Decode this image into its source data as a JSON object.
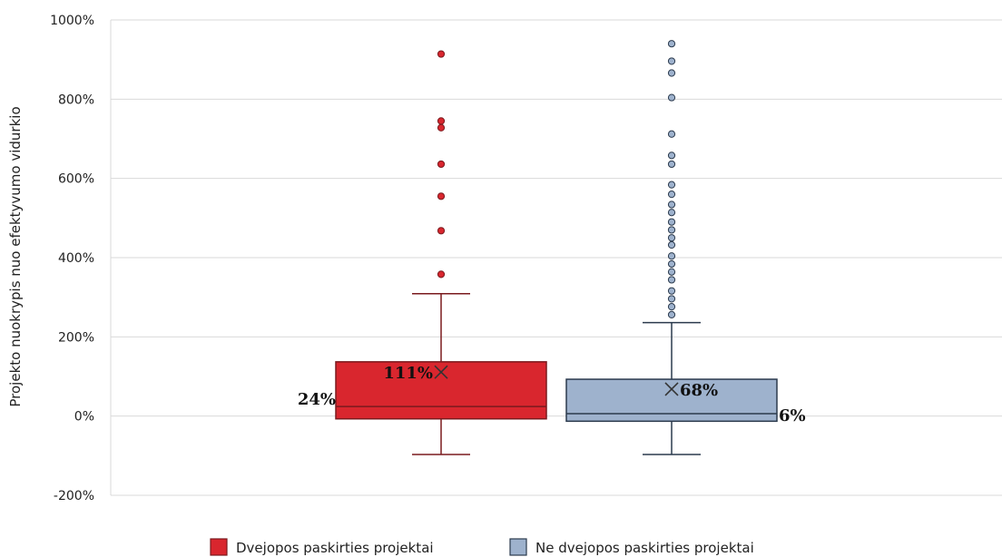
{
  "chart_data": {
    "type": "box",
    "ylabel": "Projekto nuokrypis nuo efektyvumo vidurkio",
    "xlabel": "",
    "ylim": [
      -200,
      1000
    ],
    "yticks": [
      -200,
      0,
      200,
      400,
      600,
      800,
      1000
    ],
    "ytick_labels": [
      "-200%",
      "0%",
      "200%",
      "400%",
      "600%",
      "800%",
      "1000%"
    ],
    "grid": true,
    "legend_position": "bottom",
    "series": [
      {
        "name": "Dvejopos paskirties projektai",
        "color": "#d9262e",
        "edge_color": "#7a1a1e",
        "whisker_low": -97,
        "q1": -7,
        "median": 24,
        "q3": 137,
        "whisker_high": 309,
        "mean": 111,
        "median_label": "24%",
        "mean_label": "111%",
        "outliers": [
          358,
          468,
          555,
          636,
          728,
          745,
          914
        ]
      },
      {
        "name": "Ne dvejopos paskirties projektai",
        "color": "#9eb2cd",
        "edge_color": "#2b3a4d",
        "whisker_low": -97,
        "q1": -13,
        "median": 6,
        "q3": 93,
        "whisker_high": 236,
        "mean": 68,
        "median_label": "6%",
        "mean_label": "68%",
        "outliers": [
          256,
          276,
          296,
          316,
          344,
          364,
          384,
          404,
          432,
          450,
          470,
          490,
          514,
          534,
          560,
          584,
          636,
          658,
          712,
          804,
          866,
          896,
          940
        ]
      }
    ]
  }
}
